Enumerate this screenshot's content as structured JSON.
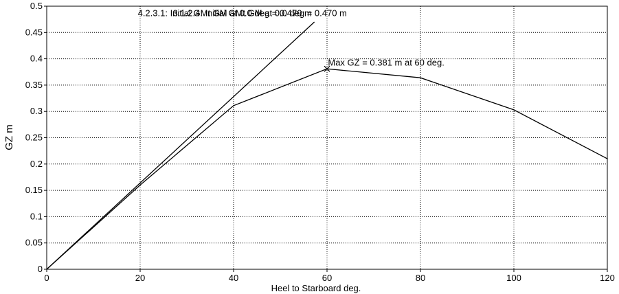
{
  "chart_data": {
    "type": "line",
    "xlabel": "Heel to Starboard   deg.",
    "ylabel": "GZ  m",
    "xlim": [
      0,
      120
    ],
    "ylim": [
      0,
      0.5
    ],
    "grid": true,
    "x_ticks": [
      "0",
      "20",
      "40",
      "60",
      "80",
      "100",
      "120"
    ],
    "y_ticks": [
      "0",
      "0.05",
      "0.1",
      "0.15",
      "0.2",
      "0.25",
      "0.3",
      "0.35",
      "0.4",
      "0.45",
      "0.5"
    ],
    "series": [
      {
        "name": "",
        "x": [
          0,
          20,
          40,
          60,
          80,
          100,
          120
        ],
        "y": [
          0,
          0.16,
          0.311,
          0.381,
          0.364,
          0.303,
          0.21
        ]
      },
      {
        "name": "",
        "x": [
          0,
          57.3
        ],
        "y": [
          0,
          0.47
        ]
      }
    ],
    "annotations": [
      {
        "text": "4.2.3.1: Initial GMt  GM at 0.0 deg = 0.470 m",
        "x": 19.5,
        "y": 0.486
      },
      {
        "text": "3.1.2.4: Initial GMt  GM at 0.0 deg = 0.470 m",
        "x": 27.0,
        "y": 0.486
      },
      {
        "text": "Max GZ = 0.381 m at 60 deg.",
        "x": 60.2,
        "y": 0.392
      }
    ],
    "marker": {
      "x": 60,
      "y": 0.381,
      "symbol": "x"
    }
  }
}
